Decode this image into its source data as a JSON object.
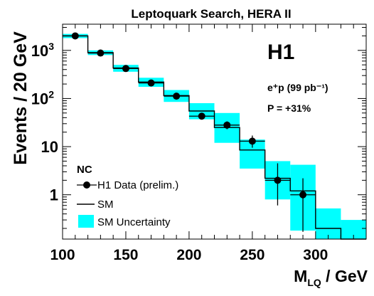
{
  "chart_data": {
    "type": "histogram",
    "title": "Leptoquark Search, HERA II",
    "experiment_label": "H1",
    "info_lines": [
      "e⁺p (99 pb⁻¹)",
      "P = +31%"
    ],
    "xlabel_main": "M",
    "xlabel_sub": "LQ",
    "xlabel_unit": " / GeV",
    "ylabel": "Events / 20 GeV",
    "xlim": [
      100,
      340
    ],
    "ylim_log": [
      0.12,
      3500
    ],
    "y_scale": "log",
    "x_ticks": [
      100,
      150,
      200,
      250,
      300
    ],
    "y_ticks": [
      {
        "value": 1,
        "label": "1"
      },
      {
        "value": 10,
        "label": "10"
      },
      {
        "value": 100,
        "label": "10",
        "exp": "2"
      },
      {
        "value": 1000,
        "label": "10",
        "exp": "3"
      }
    ],
    "bin_edges": [
      100,
      120,
      140,
      160,
      180,
      200,
      220,
      240,
      260,
      280,
      300,
      320,
      340
    ],
    "sm_prediction": [
      2000,
      900,
      430,
      220,
      115,
      55,
      25,
      8.5,
      2.2,
      1.2,
      0.2,
      0.12
    ],
    "sm_band_low": [
      1800,
      800,
      360,
      175,
      85,
      37,
      12,
      3.5,
      0.8,
      0.18,
      0.12,
      0.12
    ],
    "sm_band_high": [
      2200,
      1000,
      500,
      270,
      150,
      80,
      50,
      14,
      5.0,
      4.2,
      0.52,
      0.3
    ],
    "data_points": [
      {
        "x": 110,
        "y": 2000,
        "err_lo": 45,
        "err_hi": 45
      },
      {
        "x": 130,
        "y": 880,
        "err_lo": 30,
        "err_hi": 30
      },
      {
        "x": 150,
        "y": 420,
        "err_lo": 20,
        "err_hi": 20
      },
      {
        "x": 170,
        "y": 210,
        "err_lo": 15,
        "err_hi": 15
      },
      {
        "x": 190,
        "y": 112,
        "err_lo": 11,
        "err_hi": 11
      },
      {
        "x": 210,
        "y": 43,
        "err_lo": 6.5,
        "err_hi": 7
      },
      {
        "x": 230,
        "y": 28,
        "err_lo": 5,
        "err_hi": 5.5
      },
      {
        "x": 250,
        "y": 13,
        "err_lo": 3.5,
        "err_hi": 4
      },
      {
        "x": 270,
        "y": 2,
        "err_lo": 1.4,
        "err_hi": 2.5
      },
      {
        "x": 290,
        "y": 1,
        "err_lo": 0.83,
        "err_hi": 1.2
      }
    ],
    "legend": {
      "header": "NC",
      "entries": [
        "H1 Data (prelim.)",
        "SM",
        "SM Uncertainty"
      ]
    },
    "band_color": "#00ffff",
    "line_color": "#000000"
  }
}
